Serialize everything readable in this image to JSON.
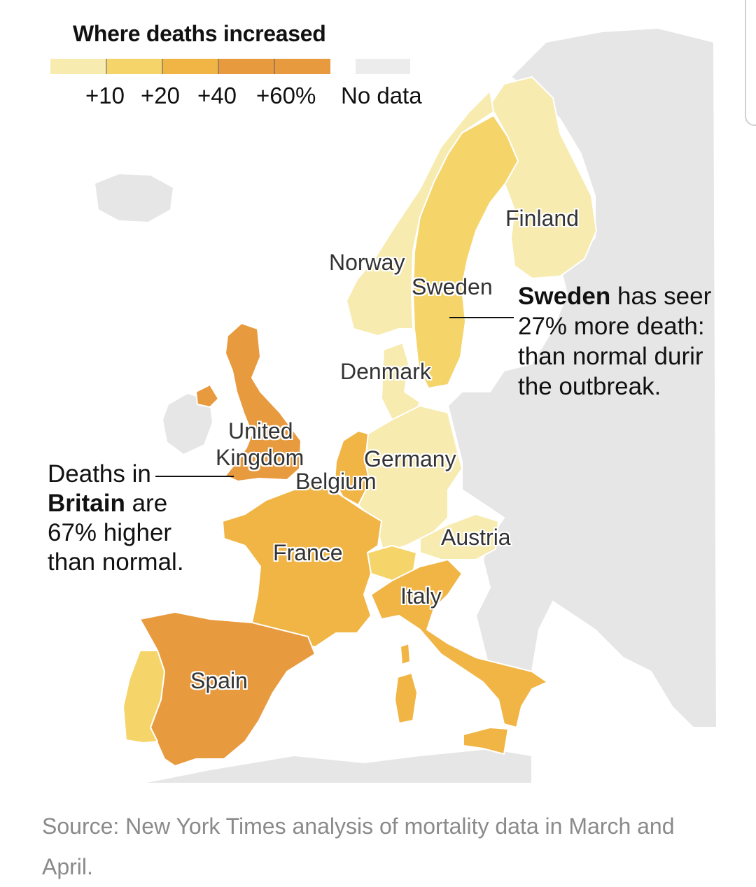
{
  "legend": {
    "title": "Where deaths increased",
    "steps": [
      {
        "label": "+10",
        "color": "#f7ebb0"
      },
      {
        "label": "+20",
        "color": "#f5d46a"
      },
      {
        "label": "+40",
        "color": "#f0b545"
      },
      {
        "label": "+60%",
        "color": "#e89a3e"
      }
    ],
    "no_data_label": "No data",
    "no_data_color": "#ececec"
  },
  "colors": {
    "land_no_data": "#e6e6e6",
    "border": "#ffffff",
    "tier_10": "#f7ebb0",
    "tier_20": "#f5d46a",
    "tier_40": "#f0b545",
    "tier_60": "#e89a3e"
  },
  "countries": [
    {
      "name": "Finland",
      "tier": "tier_10"
    },
    {
      "name": "Norway",
      "tier": "tier_10"
    },
    {
      "name": "Sweden",
      "tier": "tier_20"
    },
    {
      "name": "Denmark",
      "tier": "tier_10"
    },
    {
      "name": "United Kingdom",
      "tier": "tier_60"
    },
    {
      "name": "Germany",
      "tier": "tier_10"
    },
    {
      "name": "Belgium",
      "tier": "tier_40"
    },
    {
      "name": "Austria",
      "tier": "tier_10"
    },
    {
      "name": "France",
      "tier": "tier_40"
    },
    {
      "name": "Italy",
      "tier": "tier_40"
    },
    {
      "name": "Spain",
      "tier": "tier_60"
    }
  ],
  "labels": {
    "finland": "Finland",
    "norway": "Norway",
    "sweden": "Sweden",
    "denmark": "Denmark",
    "uk_line1": "United",
    "uk_line2": "Kingdom",
    "germany": "Germany",
    "belgium": "Belgium",
    "austria": "Austria",
    "france": "France",
    "italy": "Italy",
    "spain": "Spain"
  },
  "annotations": {
    "sweden": {
      "bold": "Sweden",
      "line1_rest": " has seer",
      "line2": "27% more death:",
      "line3": "than normal durir",
      "line4": "the outbreak."
    },
    "britain": {
      "line1": "Deaths in",
      "bold": "Britain",
      "line2_rest": " are",
      "line3": "67% higher",
      "line4": "than normal."
    }
  },
  "source": "Source: New York Times analysis of mortality data in March and April."
}
